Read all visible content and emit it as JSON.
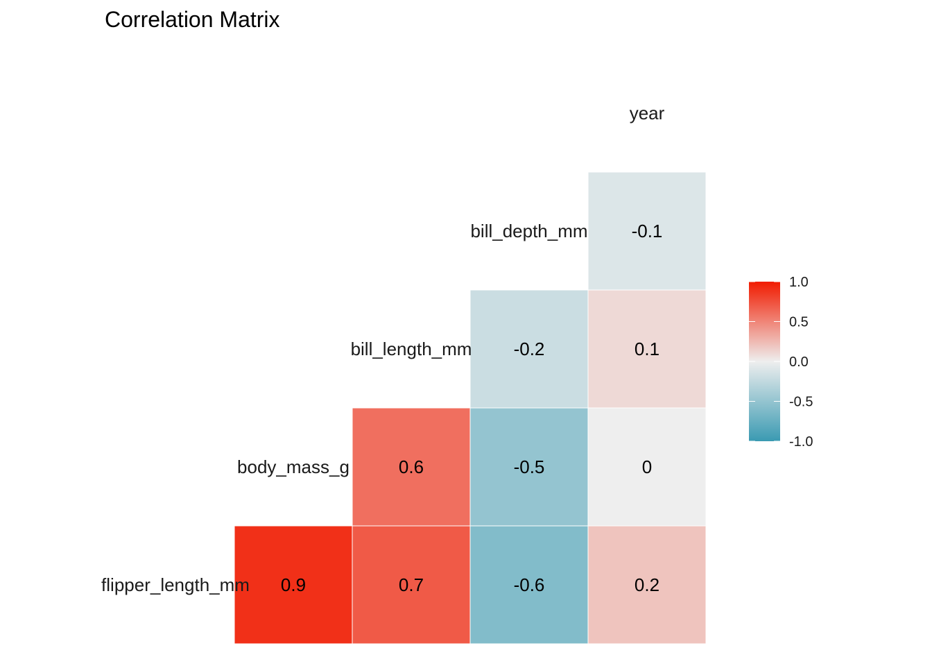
{
  "chart_data": {
    "type": "heatmap",
    "title": "Correlation Matrix",
    "variables": [
      "flipper_length_mm",
      "body_mass_g",
      "bill_length_mm",
      "bill_depth_mm",
      "year"
    ],
    "cells": [
      {
        "row": "flipper_length_mm",
        "col": "body_mass_g",
        "value": 0.9,
        "label": "0.9"
      },
      {
        "row": "flipper_length_mm",
        "col": "bill_length_mm",
        "value": 0.7,
        "label": "0.7"
      },
      {
        "row": "flipper_length_mm",
        "col": "bill_depth_mm",
        "value": -0.6,
        "label": "-0.6"
      },
      {
        "row": "flipper_length_mm",
        "col": "year",
        "value": 0.2,
        "label": "0.2"
      },
      {
        "row": "body_mass_g",
        "col": "bill_length_mm",
        "value": 0.6,
        "label": "0.6"
      },
      {
        "row": "body_mass_g",
        "col": "bill_depth_mm",
        "value": -0.5,
        "label": "-0.5"
      },
      {
        "row": "body_mass_g",
        "col": "year",
        "value": 0.0,
        "label": "0"
      },
      {
        "row": "bill_length_mm",
        "col": "bill_depth_mm",
        "value": -0.2,
        "label": "-0.2"
      },
      {
        "row": "bill_length_mm",
        "col": "year",
        "value": 0.1,
        "label": "0.1"
      },
      {
        "row": "bill_depth_mm",
        "col": "year",
        "value": -0.1,
        "label": "-0.1"
      }
    ],
    "color_scale": {
      "low": "#3A9AB2",
      "mid": "#EEEEEE",
      "high": "#F11B00",
      "limits": [
        -1,
        1
      ]
    },
    "legend": {
      "position": "right",
      "ticks": [
        1.0,
        0.5,
        0.0,
        -0.5,
        -1.0
      ],
      "tick_labels": [
        "1.0",
        "0.5",
        "0.0",
        "-0.5",
        "-1.0"
      ]
    }
  }
}
